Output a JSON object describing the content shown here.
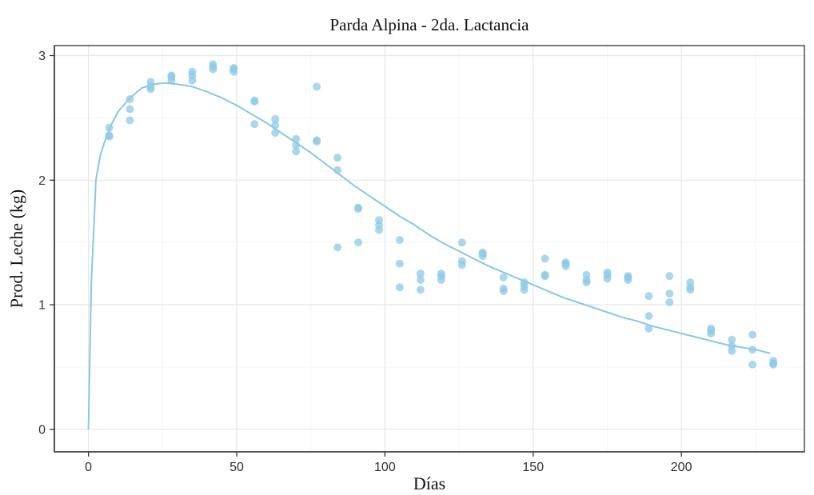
{
  "chart_data": {
    "type": "scatter",
    "title": "Parda Alpina - 2da. Lactancia",
    "xlabel": "Días",
    "ylabel": "Prod. Leche (kg)",
    "xlim": [
      -11.5,
      241.5
    ],
    "ylim": [
      -0.18,
      3.08
    ],
    "x_ticks": [
      0,
      50,
      100,
      150,
      200
    ],
    "y_ticks": [
      0,
      1,
      2,
      3
    ],
    "grid": true,
    "point_color": "#8ecae6",
    "curve_color": "#87c8e3",
    "series": [
      {
        "kind": "points",
        "points": [
          [
            7,
            2.35
          ],
          [
            7,
            2.36
          ],
          [
            7,
            2.42
          ],
          [
            14,
            2.48
          ],
          [
            14,
            2.57
          ],
          [
            14,
            2.65
          ],
          [
            21,
            2.73
          ],
          [
            21,
            2.75
          ],
          [
            21,
            2.79
          ],
          [
            28,
            2.8
          ],
          [
            28,
            2.83
          ],
          [
            28,
            2.84
          ],
          [
            35,
            2.8
          ],
          [
            35,
            2.84
          ],
          [
            35,
            2.87
          ],
          [
            42,
            2.89
          ],
          [
            42,
            2.91
          ],
          [
            42,
            2.93
          ],
          [
            49,
            2.87
          ],
          [
            49,
            2.89
          ],
          [
            49,
            2.9
          ],
          [
            56,
            2.45
          ],
          [
            56,
            2.63
          ],
          [
            56,
            2.64
          ],
          [
            63,
            2.38
          ],
          [
            63,
            2.44
          ],
          [
            63,
            2.49
          ],
          [
            70,
            2.23
          ],
          [
            70,
            2.28
          ],
          [
            70,
            2.33
          ],
          [
            77,
            2.31
          ],
          [
            77,
            2.32
          ],
          [
            77,
            2.75
          ],
          [
            84,
            1.46
          ],
          [
            84,
            2.08
          ],
          [
            84,
            2.18
          ],
          [
            91,
            1.5
          ],
          [
            91,
            1.77
          ],
          [
            91,
            1.78
          ],
          [
            98,
            1.6
          ],
          [
            98,
            1.64
          ],
          [
            98,
            1.68
          ],
          [
            105,
            1.14
          ],
          [
            105,
            1.33
          ],
          [
            105,
            1.52
          ],
          [
            112,
            1.12
          ],
          [
            112,
            1.2
          ],
          [
            112,
            1.25
          ],
          [
            119,
            1.2
          ],
          [
            119,
            1.23
          ],
          [
            119,
            1.25
          ],
          [
            126,
            1.32
          ],
          [
            126,
            1.35
          ],
          [
            126,
            1.5
          ],
          [
            133,
            1.39
          ],
          [
            133,
            1.41
          ],
          [
            133,
            1.42
          ],
          [
            140,
            1.11
          ],
          [
            140,
            1.13
          ],
          [
            140,
            1.22
          ],
          [
            147,
            1.12
          ],
          [
            147,
            1.15
          ],
          [
            147,
            1.18
          ],
          [
            154,
            1.23
          ],
          [
            154,
            1.24
          ],
          [
            154,
            1.37
          ],
          [
            161,
            1.31
          ],
          [
            161,
            1.33
          ],
          [
            161,
            1.34
          ],
          [
            168,
            1.18
          ],
          [
            168,
            1.2
          ],
          [
            168,
            1.24
          ],
          [
            175,
            1.21
          ],
          [
            175,
            1.24
          ],
          [
            175,
            1.26
          ],
          [
            182,
            1.2
          ],
          [
            182,
            1.22
          ],
          [
            182,
            1.23
          ],
          [
            189,
            0.81
          ],
          [
            189,
            0.91
          ],
          [
            189,
            1.07
          ],
          [
            196,
            1.02
          ],
          [
            196,
            1.09
          ],
          [
            196,
            1.23
          ],
          [
            203,
            1.12
          ],
          [
            203,
            1.14
          ],
          [
            203,
            1.18
          ],
          [
            210,
            0.77
          ],
          [
            210,
            0.79
          ],
          [
            210,
            0.81
          ],
          [
            217,
            0.63
          ],
          [
            217,
            0.67
          ],
          [
            217,
            0.72
          ],
          [
            224,
            0.52
          ],
          [
            224,
            0.64
          ],
          [
            224,
            0.76
          ],
          [
            231,
            0.52
          ],
          [
            231,
            0.53
          ],
          [
            231,
            0.55
          ]
        ]
      },
      {
        "kind": "fitted_line",
        "points": [
          [
            0,
            0.0
          ],
          [
            1,
            1.2
          ],
          [
            2,
            1.72
          ],
          [
            2.5,
            2.0
          ],
          [
            4,
            2.2
          ],
          [
            6,
            2.35
          ],
          [
            8,
            2.46
          ],
          [
            10,
            2.55
          ],
          [
            14,
            2.66
          ],
          [
            18,
            2.74
          ],
          [
            22,
            2.77
          ],
          [
            26,
            2.78
          ],
          [
            30,
            2.77
          ],
          [
            35,
            2.75
          ],
          [
            40,
            2.71
          ],
          [
            45,
            2.66
          ],
          [
            50,
            2.6
          ],
          [
            55,
            2.53
          ],
          [
            60,
            2.46
          ],
          [
            65,
            2.38
          ],
          [
            70,
            2.3
          ],
          [
            75,
            2.22
          ],
          [
            80,
            2.13
          ],
          [
            85,
            2.04
          ],
          [
            90,
            1.95
          ],
          [
            95,
            1.87
          ],
          [
            100,
            1.79
          ],
          [
            105,
            1.71
          ],
          [
            110,
            1.64
          ],
          [
            115,
            1.56
          ],
          [
            120,
            1.49
          ],
          [
            125,
            1.43
          ],
          [
            130,
            1.37
          ],
          [
            135,
            1.31
          ],
          [
            140,
            1.26
          ],
          [
            145,
            1.21
          ],
          [
            150,
            1.16
          ],
          [
            155,
            1.11
          ],
          [
            160,
            1.06
          ],
          [
            165,
            1.02
          ],
          [
            170,
            0.98
          ],
          [
            175,
            0.94
          ],
          [
            180,
            0.9
          ],
          [
            185,
            0.87
          ],
          [
            190,
            0.83
          ],
          [
            195,
            0.8
          ],
          [
            200,
            0.77
          ],
          [
            205,
            0.74
          ],
          [
            210,
            0.71
          ],
          [
            215,
            0.68
          ],
          [
            220,
            0.66
          ],
          [
            225,
            0.64
          ],
          [
            230,
            0.61
          ]
        ]
      }
    ]
  }
}
